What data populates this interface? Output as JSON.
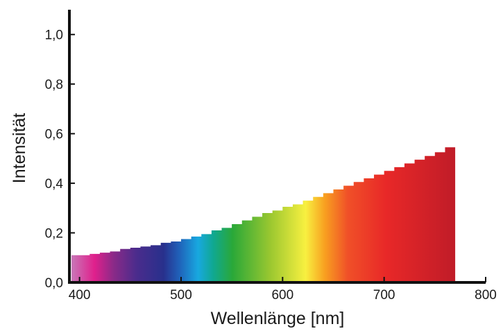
{
  "chart_data": {
    "type": "area",
    "title": "",
    "xlabel": "Wellenlänge [nm]",
    "ylabel": "Intensität",
    "xlim": [
      390,
      800
    ],
    "ylim": [
      0,
      1.1
    ],
    "x_ticks": [
      400,
      500,
      600,
      700,
      800
    ],
    "x_tick_labels": [
      "400",
      "500",
      "600",
      "700",
      "800"
    ],
    "y_ticks": [
      0,
      0.2,
      0.4,
      0.6,
      0.8,
      1.0
    ],
    "y_tick_labels": [
      "0,0",
      "0,2",
      "0,4",
      "0,6",
      "0,8",
      "1,0"
    ],
    "grid": false,
    "fill": "visible-spectrum",
    "series": [
      {
        "x": [
          392,
          400,
          410,
          420,
          430,
          440,
          450,
          460,
          470,
          480,
          490,
          500,
          510,
          520,
          530,
          540,
          550,
          560,
          570,
          580,
          590,
          600,
          610,
          620,
          630,
          640,
          650,
          660,
          670,
          680,
          690,
          700,
          710,
          720,
          730,
          740,
          750,
          760,
          770
        ],
        "y": [
          0.11,
          0.11,
          0.115,
          0.12,
          0.125,
          0.135,
          0.14,
          0.145,
          0.15,
          0.16,
          0.165,
          0.175,
          0.185,
          0.195,
          0.21,
          0.22,
          0.235,
          0.25,
          0.265,
          0.28,
          0.29,
          0.305,
          0.315,
          0.33,
          0.345,
          0.36,
          0.375,
          0.39,
          0.405,
          0.42,
          0.435,
          0.45,
          0.465,
          0.48,
          0.495,
          0.51,
          0.525,
          0.545,
          0.56
        ]
      }
    ]
  }
}
